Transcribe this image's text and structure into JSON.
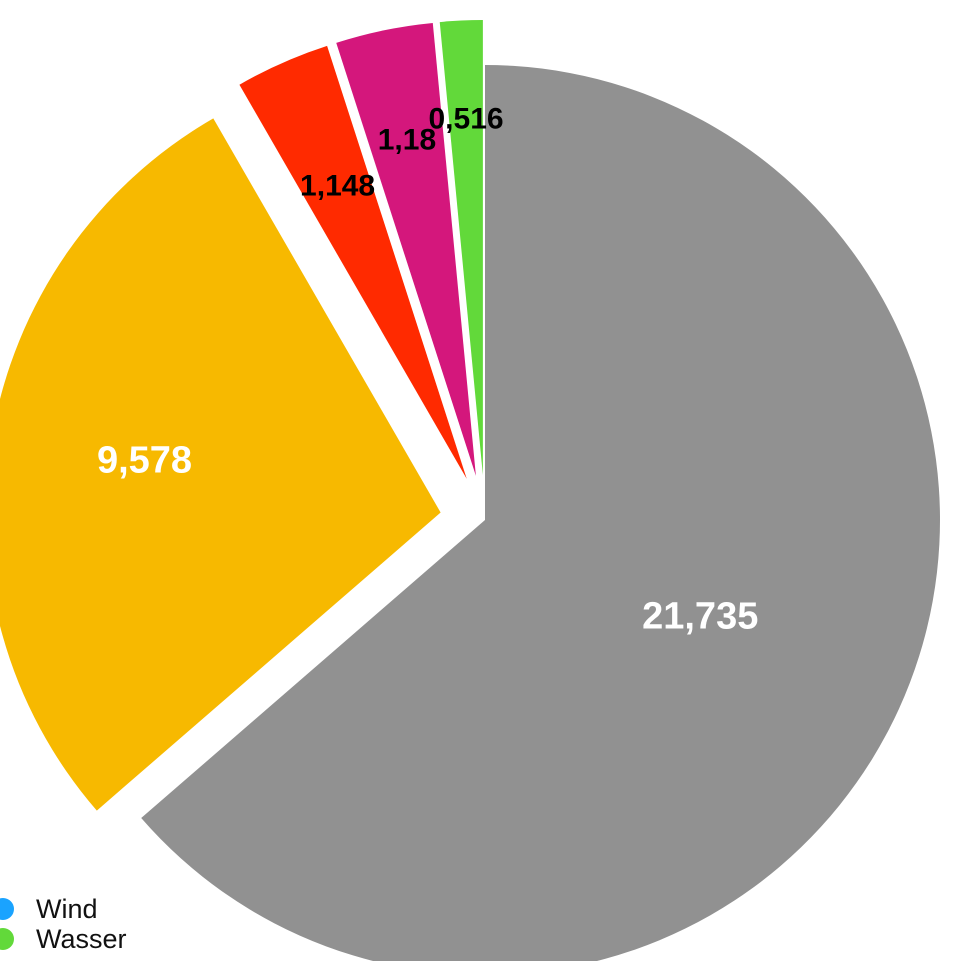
{
  "chart_data": {
    "type": "pie",
    "slices": [
      {
        "value": 21.735,
        "label": "21,735",
        "color": "#919191",
        "label_color": "#ffffff"
      },
      {
        "value": 9.578,
        "label": "9,578",
        "color": "#f7b900",
        "label_color": "#ffffff"
      },
      {
        "value": 1.148,
        "label": "1,148",
        "color": "#ff2a00",
        "label_color": "#000000"
      },
      {
        "value": 1.18,
        "label": "1,18",
        "color": "#d4177c",
        "label_color": "#000000"
      },
      {
        "value": 0.516,
        "label": "0,516",
        "color": "#62d93a",
        "label_color": "#000000"
      }
    ],
    "legend": [
      {
        "name": "Wind",
        "color": "#1aa3ff"
      },
      {
        "name": "Wasser",
        "color": "#62d93a"
      }
    ],
    "legend_position": "bottom-left"
  }
}
